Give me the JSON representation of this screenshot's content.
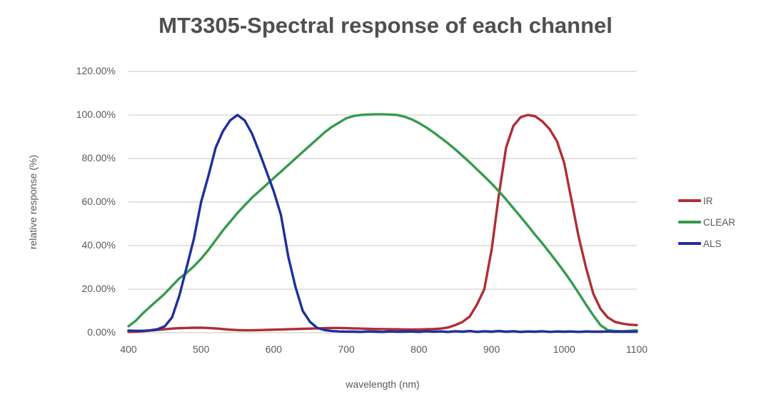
{
  "title": "MT3305-Spectral response of each channel",
  "axes": {
    "x_label": "wavelength (nm)",
    "y_label": "relative response (%)",
    "x_ticks": [
      "400",
      "500",
      "600",
      "700",
      "800",
      "900",
      "1000",
      "1100"
    ],
    "y_ticks": [
      "0.00%",
      "20.00%",
      "40.00%",
      "60.00%",
      "80.00%",
      "100.00%",
      "120.00%"
    ]
  },
  "colors": {
    "background": "#ffffff",
    "gridline": "#d9d9d9",
    "axis_text": "#595959",
    "title_text": "#4f4f4f",
    "ir": "#b02d35",
    "clear": "#379a4d",
    "als": "#1e2f9d"
  },
  "legend": {
    "position": "right",
    "entries": [
      "IR",
      "CLEAR",
      "ALS"
    ]
  },
  "chart_data": {
    "type": "line",
    "title": "MT3305-Spectral response of each channel",
    "xlabel": "wavelength (nm)",
    "ylabel": "relative response (%)",
    "xlim": [
      400,
      1100
    ],
    "ylim": [
      0,
      120
    ],
    "y_unit": "percent",
    "grid": "horizontal",
    "legend_position": "right",
    "x": [
      400,
      410,
      420,
      430,
      440,
      450,
      460,
      470,
      480,
      490,
      500,
      510,
      520,
      530,
      540,
      550,
      560,
      570,
      580,
      590,
      600,
      610,
      620,
      630,
      640,
      650,
      660,
      670,
      680,
      690,
      700,
      710,
      720,
      730,
      740,
      750,
      760,
      770,
      780,
      790,
      800,
      810,
      820,
      830,
      840,
      850,
      860,
      870,
      880,
      890,
      900,
      910,
      920,
      930,
      940,
      950,
      960,
      970,
      980,
      990,
      1000,
      1010,
      1020,
      1030,
      1040,
      1050,
      1060,
      1070,
      1080,
      1090,
      1100
    ],
    "series": [
      {
        "name": "IR",
        "color": "#b02d35",
        "values": [
          0.4,
          0.5,
          0.7,
          1,
          1.3,
          1.6,
          1.9,
          2.1,
          2.2,
          2.3,
          2.3,
          2.2,
          2,
          1.7,
          1.4,
          1.2,
          1.1,
          1.1,
          1.2,
          1.3,
          1.4,
          1.5,
          1.6,
          1.7,
          1.8,
          1.9,
          2,
          2.1,
          2.2,
          2.2,
          2.1,
          2,
          1.9,
          1.8,
          1.7,
          1.7,
          1.6,
          1.6,
          1.5,
          1.5,
          1.5,
          1.6,
          1.7,
          1.9,
          2.4,
          3.5,
          5,
          7.5,
          13,
          20,
          38,
          63,
          85,
          95,
          99,
          100,
          99.4,
          97,
          93.5,
          88,
          78,
          61,
          44,
          30,
          18,
          11,
          7,
          5,
          4.2,
          3.7,
          3.5
        ]
      },
      {
        "name": "CLEAR",
        "color": "#379a4d",
        "values": [
          3,
          5.5,
          9,
          12,
          15,
          18,
          21.5,
          25,
          27.5,
          30.5,
          34,
          38,
          42.5,
          47,
          51,
          55,
          58.5,
          62,
          65,
          68,
          71,
          74,
          77,
          80,
          83,
          86,
          89,
          92,
          94.5,
          96.5,
          98.5,
          99.5,
          100,
          100.2,
          100.3,
          100.3,
          100.2,
          100,
          99.2,
          98,
          96.3,
          94.3,
          92,
          89.5,
          87,
          84.2,
          81.2,
          78.2,
          75,
          71.8,
          68.5,
          65,
          61.2,
          57.2,
          53.2,
          49.2,
          45,
          41,
          36.8,
          32.5,
          28,
          23.2,
          18.2,
          13,
          8,
          3.5,
          1.2,
          0.8,
          0.7,
          0.9,
          1.1
        ]
      },
      {
        "name": "ALS",
        "color": "#1e2f9d",
        "values": [
          1,
          0.9,
          0.9,
          1.1,
          1.6,
          3,
          7,
          17,
          30,
          43,
          60,
          72,
          85,
          92.5,
          97.5,
          100,
          97.5,
          91.5,
          83,
          74,
          65,
          54,
          35,
          21,
          10,
          5,
          2.2,
          1.2,
          0.8,
          0.6,
          0.5,
          0.5,
          0.4,
          0.6,
          0.5,
          0.4,
          0.6,
          0.5,
          0.5,
          0.6,
          0.4,
          0.7,
          0.5,
          0.6,
          0.4,
          0.7,
          0.5,
          0.8,
          0.4,
          0.7,
          0.5,
          0.8,
          0.5,
          0.7,
          0.4,
          0.6,
          0.5,
          0.7,
          0.4,
          0.6,
          0.5,
          0.6,
          0.4,
          0.6,
          0.5,
          0.5,
          0.6,
          0.5,
          0.5,
          0.5,
          0.5
        ]
      }
    ]
  }
}
